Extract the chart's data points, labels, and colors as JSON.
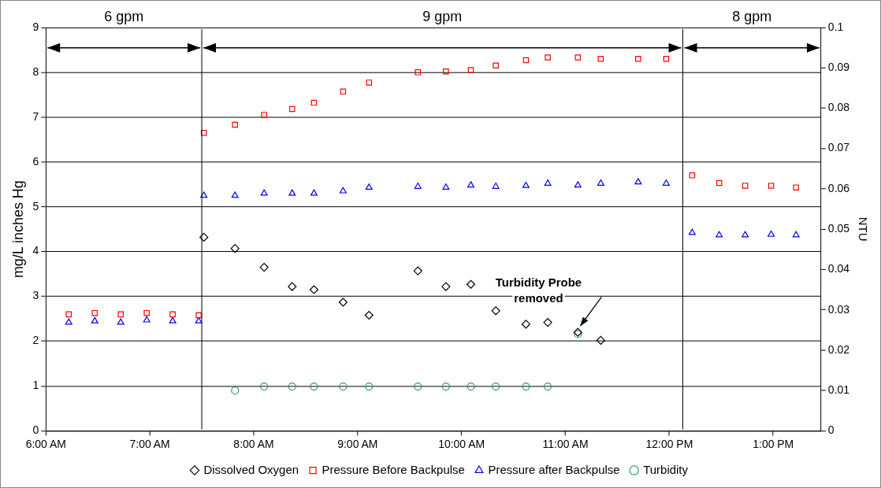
{
  "chart_data": {
    "type": "scatter",
    "xlabel": null,
    "ylabel": "mg/L inches Hg",
    "y2label": "NTU",
    "xlim": [
      6,
      13.46
    ],
    "xticks": [
      {
        "value": 6,
        "label": "6:00 AM"
      },
      {
        "value": 7,
        "label": "7:00 AM"
      },
      {
        "value": 8,
        "label": "8:00 AM"
      },
      {
        "value": 9,
        "label": "9:00 AM"
      },
      {
        "value": 10,
        "label": "10:00 AM"
      },
      {
        "value": 11,
        "label": "11:00 AM"
      },
      {
        "value": 12,
        "label": "12:00 PM"
      },
      {
        "value": 13,
        "label": "1:00 PM"
      }
    ],
    "ylim": [
      0,
      9
    ],
    "yticks": [
      0,
      1,
      2,
      3,
      4,
      5,
      6,
      7,
      8,
      9
    ],
    "y2lim": [
      0,
      0.1
    ],
    "y2ticks": [
      0,
      0.01,
      0.02,
      0.03,
      0.04,
      0.05,
      0.06,
      0.07,
      0.08,
      0.09,
      0.1
    ],
    "grid": "y",
    "legend": "bottom",
    "series": [
      {
        "name": "Dissolved Oxygen",
        "color": "#000000",
        "marker": "diamond",
        "x": [
          7.52,
          7.82,
          8.1,
          8.37,
          8.58,
          8.86,
          9.11,
          9.58,
          9.85,
          10.09,
          10.33,
          10.62,
          10.83,
          11.12,
          11.34
        ],
        "values": [
          4.32,
          4.07,
          3.65,
          3.22,
          3.15,
          2.87,
          2.58,
          3.57,
          3.22,
          3.27,
          2.68,
          2.38,
          2.42,
          2.2,
          2.02
        ]
      },
      {
        "name": "Pressure Before Backpulse",
        "color": "#ff0000",
        "marker": "square",
        "x": [
          6.22,
          6.47,
          6.72,
          6.97,
          7.22,
          7.47,
          7.52,
          7.82,
          8.1,
          8.37,
          8.58,
          8.86,
          9.11,
          9.58,
          9.85,
          10.09,
          10.33,
          10.62,
          10.83,
          11.12,
          11.34,
          11.7,
          11.97,
          12.22,
          12.48,
          12.73,
          12.98,
          13.22
        ],
        "values": [
          2.6,
          2.63,
          2.6,
          2.63,
          2.6,
          2.58,
          6.65,
          6.83,
          7.05,
          7.18,
          7.32,
          7.57,
          7.77,
          8.0,
          8.02,
          8.05,
          8.15,
          8.27,
          8.33,
          8.33,
          8.3,
          8.3,
          8.3,
          5.7,
          5.53,
          5.47,
          5.47,
          5.43
        ]
      },
      {
        "name": "Pressure after Backpulse",
        "color": "#0000ff",
        "marker": "triangle",
        "x": [
          6.22,
          6.47,
          6.72,
          6.97,
          7.22,
          7.47,
          7.52,
          7.82,
          8.1,
          8.37,
          8.58,
          8.86,
          9.11,
          9.58,
          9.85,
          10.09,
          10.33,
          10.62,
          10.83,
          11.12,
          11.34,
          11.7,
          11.97,
          12.22,
          12.48,
          12.73,
          12.98,
          13.22
        ],
        "values": [
          2.42,
          2.45,
          2.42,
          2.47,
          2.45,
          2.45,
          5.25,
          5.25,
          5.3,
          5.3,
          5.3,
          5.35,
          5.43,
          5.45,
          5.43,
          5.48,
          5.45,
          5.47,
          5.52,
          5.48,
          5.52,
          5.55,
          5.52,
          4.42,
          4.37,
          4.37,
          4.38,
          4.37
        ]
      },
      {
        "name": "Turbidity",
        "color": "#339966",
        "marker": "circle",
        "axis": "y2",
        "x": [
          7.82,
          8.1,
          8.37,
          8.58,
          8.86,
          9.11,
          9.58,
          9.85,
          10.09,
          10.33,
          10.62,
          10.83,
          11.12
        ],
        "values": [
          0.01,
          0.011,
          0.011,
          0.011,
          0.011,
          0.011,
          0.011,
          0.011,
          0.011,
          0.011,
          0.011,
          0.011,
          0.024
        ]
      }
    ],
    "ref_lines": [
      {
        "axis": "x",
        "value": 7.5
      },
      {
        "axis": "x",
        "value": 12.13
      }
    ],
    "annotations": [
      "6 gpm",
      "9 gpm",
      "8 gpm",
      {
        "text": "Turbidity Probe removed",
        "x": 11.12,
        "y": 2.2
      }
    ]
  }
}
